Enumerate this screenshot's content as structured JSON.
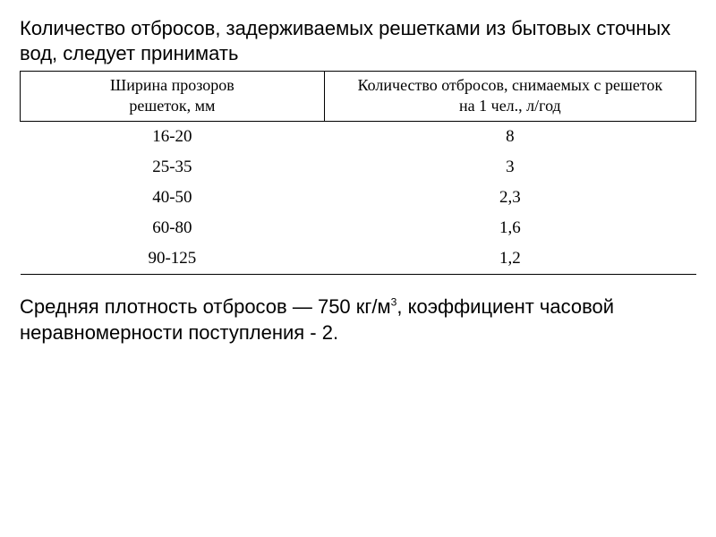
{
  "intro_text": "Количество отбросов, задерживаемых решетками из бытовых сточных вод, следует принимать",
  "table": {
    "type": "table",
    "background_color": "#ffffff",
    "border_color": "#000000",
    "header_font_family": "Times New Roman",
    "header_fontsize": 18,
    "cell_fontsize": 19,
    "columns": [
      {
        "line1": "Ширина прозоров",
        "line2": "решеток, мм",
        "align": "center",
        "width_pct": 45
      },
      {
        "line1": "Количество отбросов, снимаемых с решеток",
        "line2": "на 1 чел., л/год",
        "align": "center",
        "width_pct": 55
      }
    ],
    "rows": [
      [
        "16-20",
        "8"
      ],
      [
        "25-35",
        "3"
      ],
      [
        "40-50",
        "2,3"
      ],
      [
        "60-80",
        "1,6"
      ],
      [
        "90-125",
        "1,2"
      ]
    ]
  },
  "footnote": {
    "pre": "Средняя плотность отбросов — 750 кг/м",
    "sup": "3",
    "post": ", коэффициент часовой неравномерности поступления - 2."
  },
  "text_color": "#000000",
  "intro_fontsize": 22,
  "footnote_fontsize": 22
}
